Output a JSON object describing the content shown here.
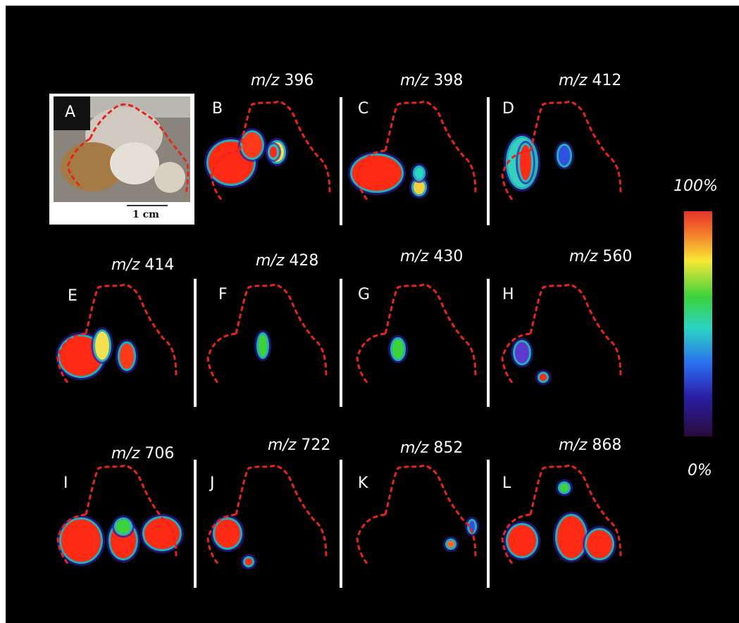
{
  "panels": [
    {
      "letter": "A"
    },
    {
      "letter": "B",
      "mz_label": "m/z",
      "mz_value": "396"
    },
    {
      "letter": "C",
      "mz_label": "m/z",
      "mz_value": "398"
    },
    {
      "letter": "D",
      "mz_label": "m/z",
      "mz_value": "412"
    },
    {
      "letter": "E",
      "mz_label": "m/z",
      "mz_value": "414"
    },
    {
      "letter": "F",
      "mz_label": "m/z",
      "mz_value": "428"
    },
    {
      "letter": "G",
      "mz_label": "m/z",
      "mz_value": "430"
    },
    {
      "letter": "H",
      "mz_label": "m/z",
      "mz_value": "560"
    },
    {
      "letter": "I",
      "mz_label": "m/z",
      "mz_value": "706"
    },
    {
      "letter": "J",
      "mz_label": "m/z",
      "mz_value": "722"
    },
    {
      "letter": "K",
      "mz_label": "m/z",
      "mz_value": "852"
    },
    {
      "letter": "L",
      "mz_label": "m/z",
      "mz_value": "868"
    }
  ],
  "scale_bar_label": "1 cm",
  "colorbar": {
    "max_label": "100%",
    "min_label": "0%"
  },
  "colors": {
    "outline": "#e8241c",
    "background": "#000000",
    "high": "#ff2a14",
    "low": "#2a0a3a"
  }
}
